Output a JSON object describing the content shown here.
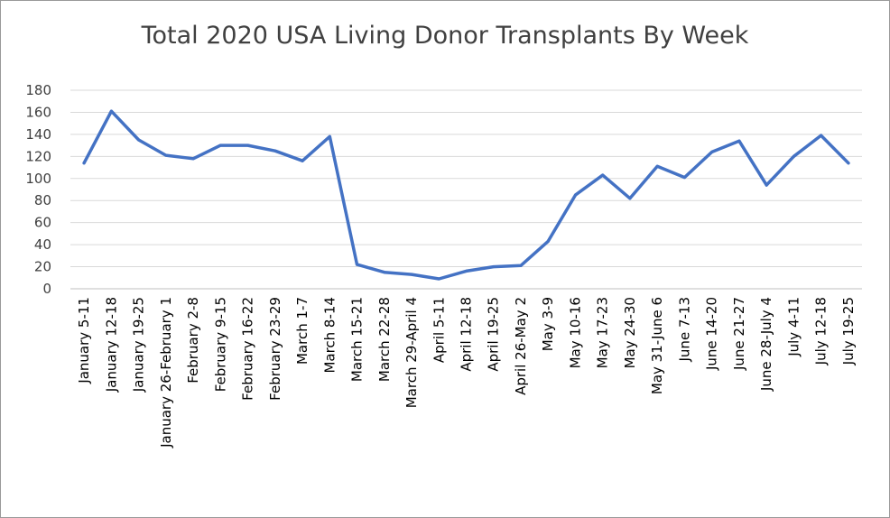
{
  "chart_data": {
    "type": "line",
    "title": "Total 2020 USA Living Donor Transplants By Week",
    "xlabel": "",
    "ylabel": "",
    "ylim": [
      0,
      180
    ],
    "yticks": [
      "0",
      "20",
      "40",
      "60",
      "80",
      "100",
      "120",
      "140",
      "160",
      "180"
    ],
    "grid": true,
    "legend": "none",
    "line_color": "#4472C4",
    "categories": [
      "January 5-11",
      "January 12-18",
      "January 19-25",
      "January 26-February 1",
      "February 2-8",
      "February 9-15",
      "February 16-22",
      "February 23-29",
      "March 1-7",
      "March 8-14",
      "March 15-21",
      "March 22-28",
      "March 29-April 4",
      "April 5-11",
      "April 12-18",
      "April 19-25",
      "April 26-May 2",
      "May 3-9",
      "May 10-16",
      "May 17-23",
      "May 24-30",
      "May 31-June 6",
      "June 7-13",
      "June 14-20",
      "June 21-27",
      "June 28-July 4",
      "July 4-11",
      "July 12-18",
      "July 19-25"
    ],
    "series": [
      {
        "values": [
          114,
          161,
          135,
          121,
          118,
          130,
          130,
          125,
          116,
          138,
          22,
          15,
          13,
          9,
          16,
          20,
          21,
          43,
          85,
          103,
          82,
          111,
          101,
          124,
          134,
          94,
          120,
          139,
          114
        ]
      }
    ]
  }
}
